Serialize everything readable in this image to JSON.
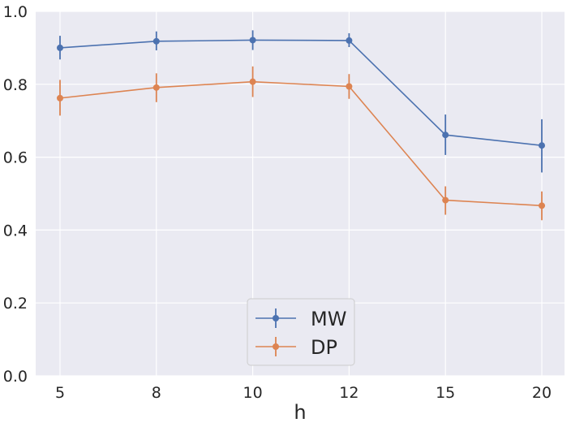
{
  "chart_data": {
    "type": "line",
    "title": "",
    "xlabel": "h",
    "ylabel": "",
    "categories": [
      "5",
      "8",
      "10",
      "12",
      "15",
      "20"
    ],
    "ylim": [
      0.0,
      1.0
    ],
    "yticks": [
      "0.0",
      "0.2",
      "0.4",
      "0.6",
      "0.8",
      "1.0"
    ],
    "ytick_values": [
      0.0,
      0.2,
      0.4,
      0.6,
      0.8,
      1.0
    ],
    "grid": true,
    "legend_position": "bottom-center",
    "series": [
      {
        "name": "MW",
        "color": "#4c72b0",
        "values": [
          0.9,
          0.918,
          0.921,
          0.92,
          0.661,
          0.632
        ],
        "err_low": [
          0.868,
          0.893,
          0.894,
          0.902,
          0.606,
          0.558
        ],
        "err_high": [
          0.933,
          0.945,
          0.948,
          0.94,
          0.717,
          0.704
        ]
      },
      {
        "name": "DP",
        "color": "#dd8452",
        "values": [
          0.762,
          0.791,
          0.807,
          0.794,
          0.482,
          0.467
        ],
        "err_low": [
          0.714,
          0.751,
          0.765,
          0.76,
          0.442,
          0.427
        ],
        "err_high": [
          0.812,
          0.83,
          0.849,
          0.828,
          0.52,
          0.506
        ]
      }
    ]
  }
}
